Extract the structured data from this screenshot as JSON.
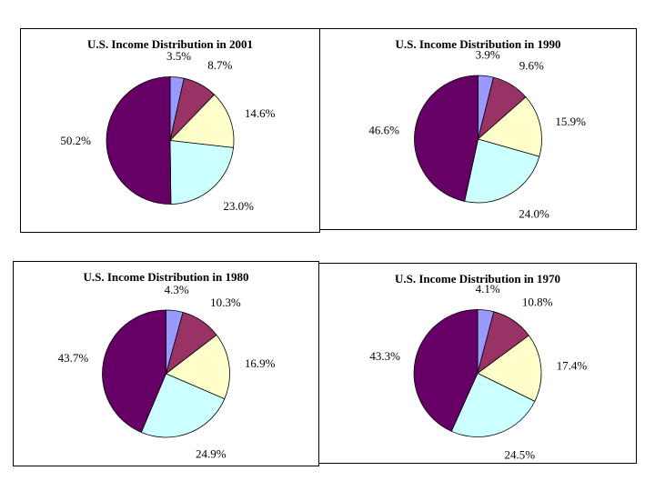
{
  "page": {
    "background": "#ffffff",
    "panel_border_color": "#000000"
  },
  "chart_data": [
    {
      "type": "pie",
      "title": "U.S. Income Distribution in 2001",
      "labels": [
        "3.5%",
        "8.7%",
        "14.6%",
        "23.0%",
        "50.2%"
      ],
      "values": [
        3.5,
        8.7,
        14.6,
        23.0,
        50.2
      ],
      "colors": [
        "#9999ff",
        "#993366",
        "#ffffcc",
        "#ccffff",
        "#660066"
      ],
      "start_angle_deg": 0,
      "direction": "clockwise",
      "legend": "none"
    },
    {
      "type": "pie",
      "title": "U.S. Income Distribution in 1990",
      "labels": [
        "3.9%",
        "9.6%",
        "15.9%",
        "24.0%",
        "46.6%"
      ],
      "values": [
        3.9,
        9.6,
        15.9,
        24.0,
        46.6
      ],
      "colors": [
        "#9999ff",
        "#993366",
        "#ffffcc",
        "#ccffff",
        "#660066"
      ],
      "start_angle_deg": 0,
      "direction": "clockwise",
      "legend": "none"
    },
    {
      "type": "pie",
      "title": "U.S. Income Distribution in 1980",
      "labels": [
        "4.3%",
        "10.3%",
        "16.9%",
        "24.9%",
        "43.7%"
      ],
      "values": [
        4.3,
        10.3,
        16.9,
        24.9,
        43.7
      ],
      "colors": [
        "#9999ff",
        "#993366",
        "#ffffcc",
        "#ccffff",
        "#660066"
      ],
      "start_angle_deg": 0,
      "direction": "clockwise",
      "legend": "none"
    },
    {
      "type": "pie",
      "title": "U.S. Income Distribution in 1970",
      "labels": [
        "4.1%",
        "10.8%",
        "17.4%",
        "24.5%",
        "43.3%"
      ],
      "values": [
        4.1,
        10.8,
        17.4,
        24.5,
        43.3
      ],
      "colors": [
        "#9999ff",
        "#993366",
        "#ffffcc",
        "#ccffff",
        "#660066"
      ],
      "start_angle_deg": 0,
      "direction": "clockwise",
      "legend": "none"
    }
  ]
}
